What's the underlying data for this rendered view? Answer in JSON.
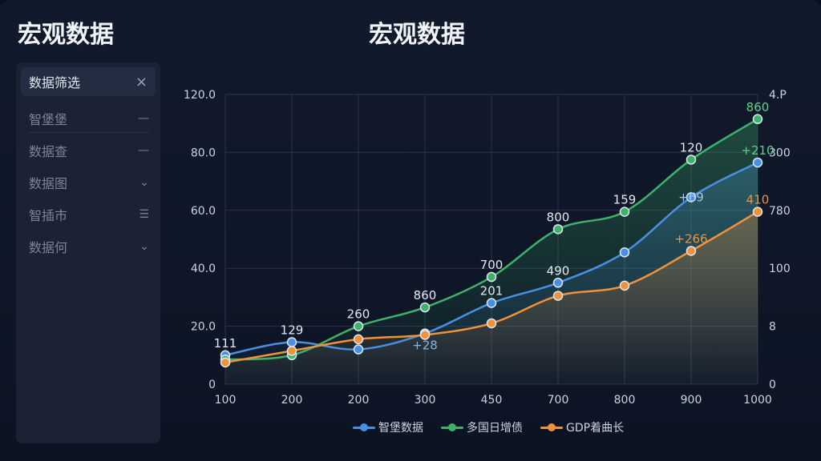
{
  "app_title": "宏观数据",
  "sidebar": {
    "filter_label": "数据筛选",
    "close_glyph": "×",
    "items": [
      {
        "label": "智堡堡",
        "glyph": "—"
      },
      {
        "label": "数据查",
        "glyph": "—"
      },
      {
        "label": "数据图",
        "glyph": "⌄"
      },
      {
        "label": "智插市",
        "glyph": "☰"
      },
      {
        "label": "数据何",
        "glyph": "⌄"
      }
    ]
  },
  "chart_data": {
    "type": "line",
    "title": "宏观数据",
    "categories": [
      "100",
      "200",
      "200",
      "300",
      "450",
      "700",
      "800",
      "900",
      "1000"
    ],
    "y_ticks": [
      "0",
      "20.0",
      "40.0",
      "60.0",
      "80.0",
      "120.0"
    ],
    "y2_ticks": [
      "0",
      "8",
      "100",
      "780",
      "300",
      "4.P"
    ],
    "ylim": [
      0,
      100
    ],
    "grid": true,
    "legend_position": "bottom",
    "colors": {
      "blue": "#4a90e2",
      "green": "#3fb26a",
      "orange": "#f0923a"
    },
    "series": [
      {
        "name": "智堡数据",
        "color": "#4a90e2",
        "values": [
          10,
          14.5,
          12,
          17.5,
          28,
          35,
          45.5,
          64.5,
          76.5
        ]
      },
      {
        "name": "多国日增债",
        "color": "#3fb26a",
        "values": [
          8.5,
          10,
          20,
          26.5,
          37,
          53.5,
          59.5,
          77.5,
          91.5
        ]
      },
      {
        "name": "GDP着曲长",
        "color": "#f0923a",
        "values": [
          7.5,
          11.5,
          15.5,
          17,
          21,
          30.5,
          34,
          46,
          59.5
        ]
      }
    ],
    "point_labels": [
      {
        "text": "111",
        "x_index": 0,
        "y": 10,
        "color": "#e2e8f0"
      },
      {
        "text": "129",
        "x_index": 1,
        "y": 14.5,
        "color": "#e2e8f0"
      },
      {
        "text": "260",
        "x_index": 2,
        "y": 20,
        "color": "#e2e8f0"
      },
      {
        "text": "860",
        "x_index": 3,
        "y": 26.5,
        "color": "#e2e8f0"
      },
      {
        "text": "+28",
        "x_index": 3,
        "y": 17.5,
        "color": "#7fb8e6",
        "below": true
      },
      {
        "text": "700",
        "x_index": 4,
        "y": 37,
        "color": "#e2e8f0"
      },
      {
        "text": "201",
        "x_index": 4,
        "y": 28,
        "color": "#e2e8f0"
      },
      {
        "text": "800",
        "x_index": 5,
        "y": 53.5,
        "color": "#e2e8f0"
      },
      {
        "text": "490",
        "x_index": 5,
        "y": 35,
        "color": "#e2e8f0"
      },
      {
        "text": "159",
        "x_index": 6,
        "y": 59.5,
        "color": "#e2e8f0"
      },
      {
        "text": "120",
        "x_index": 7,
        "y": 77.5,
        "color": "#e2e8f0"
      },
      {
        "text": "+69",
        "x_index": 7,
        "y": 64.5,
        "color": "#9cc7ee",
        "inline": true
      },
      {
        "text": "+266",
        "x_index": 7,
        "y": 46,
        "color": "#f0923a"
      },
      {
        "text": "860",
        "x_index": 8,
        "y": 91.5,
        "color": "#5fd08a"
      },
      {
        "text": "+210",
        "x_index": 8,
        "y": 76.5,
        "color": "#5fd08a"
      },
      {
        "text": "410",
        "x_index": 8,
        "y": 59.5,
        "color": "#f0923a"
      }
    ]
  }
}
